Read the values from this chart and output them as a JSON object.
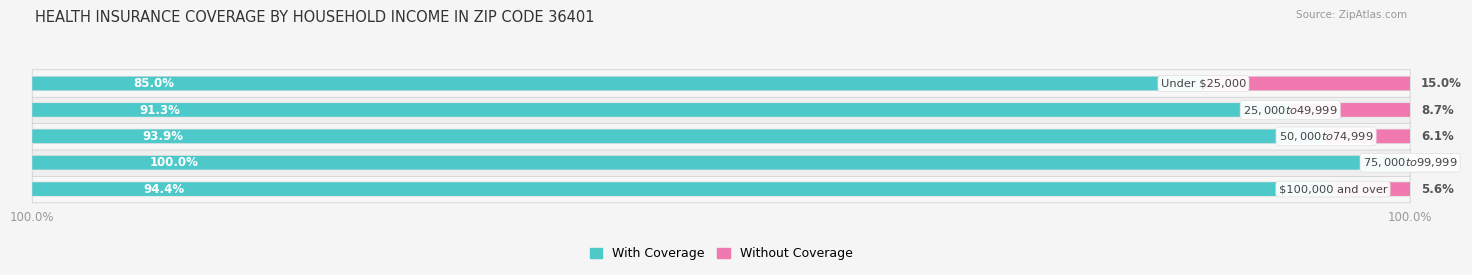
{
  "title": "HEALTH INSURANCE COVERAGE BY HOUSEHOLD INCOME IN ZIP CODE 36401",
  "source": "Source: ZipAtlas.com",
  "categories": [
    "Under $25,000",
    "$25,000 to $49,999",
    "$50,000 to $74,999",
    "$75,000 to $99,999",
    "$100,000 and over"
  ],
  "with_coverage": [
    85.0,
    91.3,
    93.9,
    100.0,
    94.4
  ],
  "without_coverage": [
    15.0,
    8.7,
    6.1,
    0.0,
    5.6
  ],
  "color_with": "#4ec9c9",
  "color_without": "#f07ab0",
  "track_color": "#e0e0e0",
  "row_colors": [
    "#f7f7f7",
    "#efefef",
    "#f7f7f7",
    "#efefef",
    "#f7f7f7"
  ],
  "bg_color": "#f5f5f5",
  "title_fontsize": 10.5,
  "label_fontsize": 8.5,
  "axis_label_fontsize": 8.5,
  "legend_fontsize": 9,
  "bar_height": 0.52,
  "xlim": [
    0,
    100
  ]
}
